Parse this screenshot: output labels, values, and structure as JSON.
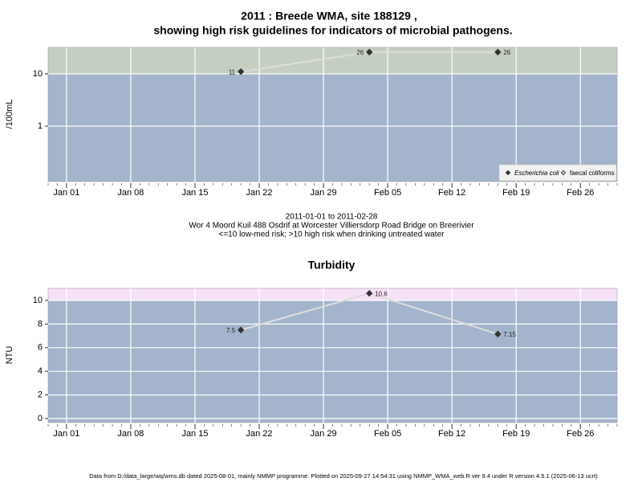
{
  "title": [
    "2011 : Breede WMA, site 188129 ,",
    "showing high risk guidelines for indicators of microbial pathogens."
  ],
  "caption": [
    "2011-01-01 to 2011-02-28",
    "Wor 4 Moord Kuil 488 Osdrif at Worcester Villiersdorp Road Bridge on Breerivier",
    "<=10 low-med risk; >10 high risk when drinking untreated water"
  ],
  "footer": "Data from D:/data_large/wq/wms.db dated 2025-08-01, mainly NMMP programme. Plotted on 2025-09-27 14:54:31 using NMMP_WMA_web.R ver 9.4 under R version 4.5.1 (2025-06-13 ucrt)",
  "chart_data": [
    {
      "type": "line",
      "y_label": "/100mL",
      "log_scale": true,
      "x": [
        "2011-01-20",
        "2011-02-03",
        "2011-02-17"
      ],
      "series": [
        {
          "name": "Escherichia coli",
          "color": "#333333",
          "marker": "filled",
          "values": [
            11,
            26,
            26
          ]
        },
        {
          "name": "faecal coliforms",
          "color": "#333333",
          "marker": "open",
          "values": [
            null,
            null,
            null
          ]
        }
      ],
      "line_color": "#dddddd",
      "threshold": 10,
      "below_color": "#a3b4cc",
      "above_color": "#c4cfc1",
      "xlim": [
        "2010-12-30",
        "2011-03-02"
      ],
      "xticks": [
        {
          "value": "2011-01-01",
          "label": "Jan 01"
        },
        {
          "value": "2011-01-08",
          "label": "Jan 08"
        },
        {
          "value": "2011-01-15",
          "label": "Jan 15"
        },
        {
          "value": "2011-01-22",
          "label": "Jan 22"
        },
        {
          "value": "2011-01-29",
          "label": "Jan 29"
        },
        {
          "value": "2011-02-05",
          "label": "Feb 05"
        },
        {
          "value": "2011-02-12",
          "label": "Feb 12"
        },
        {
          "value": "2011-02-19",
          "label": "Feb 19"
        },
        {
          "value": "2011-02-26",
          "label": "Feb 26"
        }
      ],
      "ylim": [
        0.087,
        32
      ],
      "yticks": [
        1,
        10
      ],
      "grid": true,
      "legend": "bottom-right"
    },
    {
      "type": "line",
      "title": "Turbidity",
      "y_label": "NTU",
      "log_scale": false,
      "x": [
        "2011-01-20",
        "2011-02-03",
        "2011-02-17"
      ],
      "series": [
        {
          "name": "Turbidity",
          "color": "#333333",
          "marker": "filled",
          "values": [
            7.5,
            10.6,
            7.15
          ]
        }
      ],
      "line_color": "#dddddd",
      "threshold": 10,
      "below_color": "#a3b4cc",
      "above_color": "#f7e1f7",
      "xlim": [
        "2010-12-30",
        "2011-03-02"
      ],
      "xticks": [
        {
          "value": "2011-01-01",
          "label": "Jan 01"
        },
        {
          "value": "2011-01-08",
          "label": "Jan 08"
        },
        {
          "value": "2011-01-15",
          "label": "Jan 15"
        },
        {
          "value": "2011-01-22",
          "label": "Jan 22"
        },
        {
          "value": "2011-01-29",
          "label": "Jan 29"
        },
        {
          "value": "2011-02-05",
          "label": "Feb 05"
        },
        {
          "value": "2011-02-12",
          "label": "Feb 12"
        },
        {
          "value": "2011-02-19",
          "label": "Feb 19"
        },
        {
          "value": "2011-02-26",
          "label": "Feb 26"
        }
      ],
      "ylim": [
        -0.34,
        11.02
      ],
      "yticks": [
        0,
        2,
        4,
        6,
        8,
        10
      ],
      "grid": true
    }
  ]
}
